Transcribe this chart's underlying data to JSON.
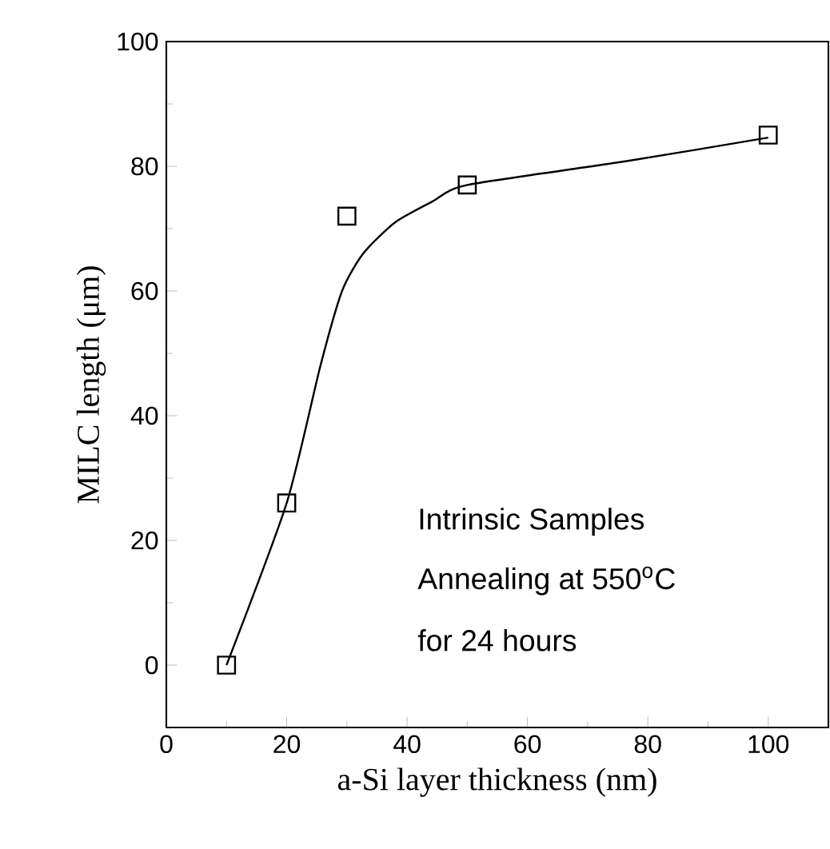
{
  "chart_data": {
    "type": "scatter",
    "xlabel": "a-Si layer thickness (nm)",
    "ylabel": "MILC length (μm)",
    "annotations": [
      "Intrinsic Samples",
      "Annealing at 550$^{o}$C",
      "for 24 hours"
    ],
    "series": [
      {
        "color": "#000000",
        "marker": "square",
        "x": [
          10,
          20,
          30,
          50,
          100
        ],
        "values": [
          0,
          26,
          72,
          77,
          85
        ]
      },
      {
        "type": "line",
        "color": "#000000",
        "marker": "none",
        "line_style": "solid",
        "x": [
          10,
          20,
          25.6,
          29.2,
          32.7,
          38,
          44.3,
          50,
          76.3,
          100
        ],
        "values": [
          0,
          26,
          48,
          60,
          66,
          71,
          74.4,
          77,
          80.8,
          84.6
        ]
      }
    ],
    "xlim": [
      0,
      110
    ],
    "ylim": [
      -10,
      100
    ],
    "xticks": [
      0,
      20,
      40,
      60,
      80,
      100
    ],
    "yticks": [
      0,
      20,
      40,
      60,
      80,
      100
    ]
  }
}
